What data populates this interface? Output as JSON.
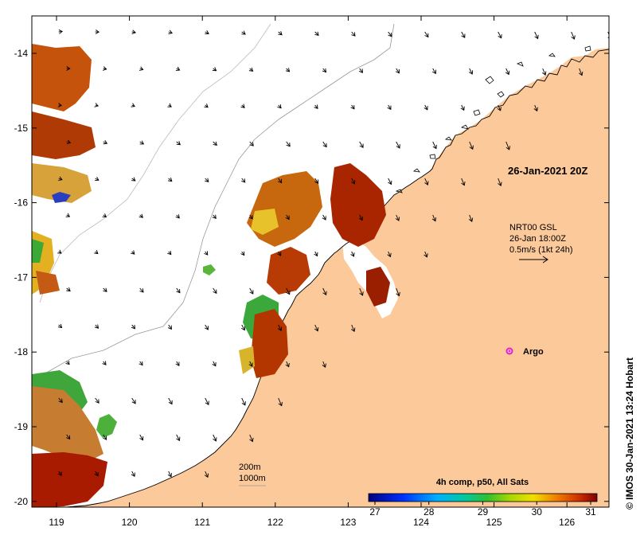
{
  "axes": {
    "lon_ticks": [
      "119",
      "120",
      "121",
      "122",
      "123",
      "124",
      "125",
      "126"
    ],
    "lat_ticks": [
      "-14",
      "-15",
      "-16",
      "-17",
      "-18",
      "-19",
      "-20"
    ]
  },
  "annotations": {
    "date_label": "26-Jan-2021 20Z",
    "current_source": "NRT00 GSL",
    "current_time": "26-Jan 18:00Z",
    "current_scale": "0.5m/s (1kt 24h)",
    "argo_label": "Argo",
    "isobath_200": "200m",
    "isobath_1000": "1000m"
  },
  "colorbar": {
    "title": "4h comp, p50, All Sats",
    "ticks": [
      "27",
      "28",
      "29",
      "30",
      "31"
    ],
    "range": [
      27,
      31
    ]
  },
  "credit": "© IMOS 30-Jan-2021 13:24 Hobart",
  "colors": {
    "land": "#fcc99b",
    "sst_hot": "#a81b00",
    "sst_mid": "#e8b02a",
    "sst_cool": "#3aa83a",
    "argo": "#e020e0"
  }
}
